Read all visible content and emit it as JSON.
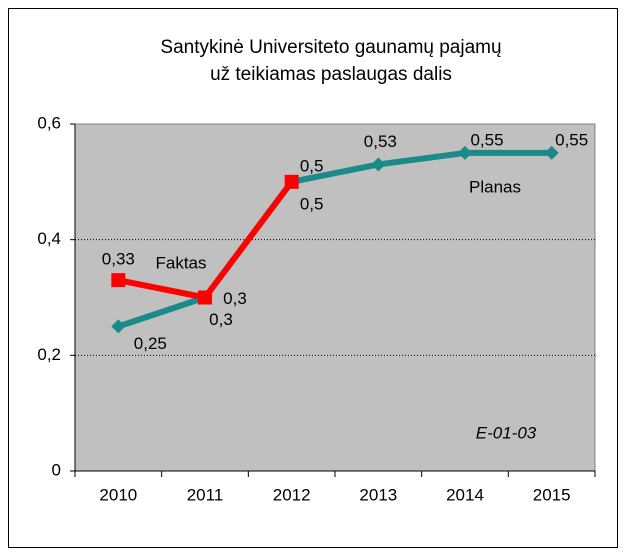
{
  "chart_data": {
    "type": "line",
    "title": [
      "Santykinė Universiteto gaunamų pajamų",
      "už teikiamas paslaugas dalis"
    ],
    "categories": [
      "2010",
      "2011",
      "2012",
      "2013",
      "2014",
      "2015"
    ],
    "series": [
      {
        "name": "Planas",
        "color": "#1a8a8a",
        "marker": "diamond",
        "values": [
          0.25,
          0.3,
          0.5,
          0.53,
          0.55,
          0.55
        ],
        "value_labels": [
          "0,25",
          "0,3",
          "0,5",
          "0,53",
          "0,55",
          "0,55"
        ]
      },
      {
        "name": "Faktas",
        "color": "#ff0000",
        "marker": "square",
        "values": [
          0.33,
          0.3,
          0.5,
          null,
          null,
          null
        ],
        "value_labels": [
          "0,33",
          "0,3",
          "0,5",
          null,
          null,
          null
        ]
      }
    ],
    "ylim": [
      0,
      0.6
    ],
    "yticks": [
      0,
      {
        "value": 0.2,
        "label": "0,2"
      },
      {
        "value": 0.4,
        "label": "0,4"
      },
      {
        "value": 0.6,
        "label": "0,6"
      }
    ],
    "grid": true,
    "annotation": "E-01-03"
  }
}
